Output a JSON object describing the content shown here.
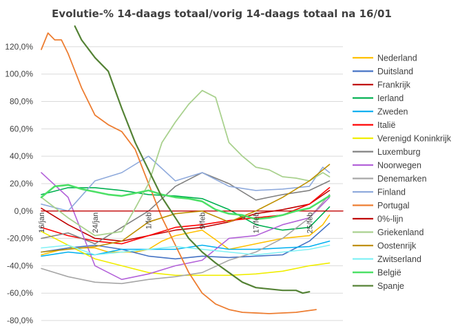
{
  "chart_data": {
    "type": "line",
    "title": "Evolutie-% 14-daags totaal/vorig 14-daags totaal na 16/01",
    "xlabel": "",
    "ylabel": "",
    "x_range": [
      "16/jan",
      "1/mrt"
    ],
    "x_ticks": [
      {
        "label": "16/jan",
        "day": 0
      },
      {
        "label": "24/jan",
        "day": 8
      },
      {
        "label": "1/feb",
        "day": 16
      },
      {
        "label": "9/feb",
        "day": 24
      },
      {
        "label": "17/feb",
        "day": 32
      },
      {
        "label": "25/feb",
        "day": 40
      }
    ],
    "ylim": [
      -80,
      130
    ],
    "y_ticks": [
      -80,
      -60,
      -40,
      -20,
      0,
      20,
      40,
      60,
      80,
      100,
      120
    ],
    "y_tick_labels": [
      "-80,0%",
      "-60,0%",
      "-40,0%",
      "-20,0%",
      "0,0%",
      "20,0%",
      "40,0%",
      "60,0%",
      "80,0%",
      "100,0%",
      "120,0%"
    ],
    "grid": "horizontal",
    "legend_position": "right",
    "series": [
      {
        "name": "Nederland",
        "color": "#ffc000",
        "width": 1.6,
        "values": [
          [
            0,
            -32
          ],
          [
            4,
            -27
          ],
          [
            8,
            -27
          ],
          [
            10,
            -30
          ],
          [
            14,
            -30
          ],
          [
            16,
            -28
          ],
          [
            18,
            -22
          ],
          [
            20,
            -18
          ],
          [
            24,
            -14
          ],
          [
            28,
            -28
          ],
          [
            32,
            -24
          ],
          [
            36,
            -20
          ],
          [
            40,
            -18
          ],
          [
            42,
            -10
          ],
          [
            43,
            -3
          ]
        ]
      },
      {
        "name": "Duitsland",
        "color": "#4472c4",
        "width": 1.6,
        "values": [
          [
            0,
            -30
          ],
          [
            4,
            -27
          ],
          [
            8,
            -25
          ],
          [
            12,
            -28
          ],
          [
            16,
            -33
          ],
          [
            20,
            -35
          ],
          [
            24,
            -33
          ],
          [
            28,
            -34
          ],
          [
            32,
            -33
          ],
          [
            36,
            -32
          ],
          [
            40,
            -22
          ],
          [
            43,
            -9
          ]
        ]
      },
      {
        "name": "Frankrijk",
        "color": "#c00000",
        "width": 1.6,
        "values": [
          [
            0,
            2
          ],
          [
            4,
            -10
          ],
          [
            8,
            -20
          ],
          [
            12,
            -22
          ],
          [
            16,
            -18
          ],
          [
            20,
            -14
          ],
          [
            24,
            -12
          ],
          [
            28,
            -8
          ],
          [
            32,
            -2
          ],
          [
            36,
            1
          ],
          [
            40,
            5
          ],
          [
            43,
            15
          ]
        ]
      },
      {
        "name": "Ierland",
        "color": "#00b050",
        "width": 1.6,
        "values": [
          [
            0,
            12
          ],
          [
            4,
            17
          ],
          [
            8,
            17
          ],
          [
            12,
            15
          ],
          [
            16,
            12
          ],
          [
            20,
            11
          ],
          [
            24,
            9
          ],
          [
            28,
            1
          ],
          [
            32,
            -10
          ],
          [
            36,
            -14
          ],
          [
            40,
            -12
          ],
          [
            43,
            3
          ]
        ]
      },
      {
        "name": "Zweden",
        "color": "#00b0f0",
        "width": 1.6,
        "values": [
          [
            0,
            -33
          ],
          [
            4,
            -30
          ],
          [
            8,
            -32
          ],
          [
            12,
            -28
          ],
          [
            16,
            -28
          ],
          [
            20,
            -28
          ],
          [
            24,
            -25
          ],
          [
            28,
            -28
          ],
          [
            32,
            -28
          ],
          [
            36,
            -27
          ],
          [
            40,
            -26
          ],
          [
            43,
            -22
          ]
        ]
      },
      {
        "name": "Italië",
        "color": "#ff0000",
        "width": 1.6,
        "values": [
          [
            0,
            -12
          ],
          [
            4,
            -18
          ],
          [
            8,
            -22
          ],
          [
            12,
            -24
          ],
          [
            16,
            -18
          ],
          [
            20,
            -12
          ],
          [
            24,
            -10
          ],
          [
            28,
            -7
          ],
          [
            32,
            -5
          ],
          [
            36,
            -3
          ],
          [
            40,
            5
          ],
          [
            43,
            17
          ]
        ]
      },
      {
        "name": "Verenigd Koninkrijk",
        "color": "#f0ed00",
        "width": 1.6,
        "values": [
          [
            0,
            -15
          ],
          [
            4,
            -25
          ],
          [
            8,
            -35
          ],
          [
            12,
            -40
          ],
          [
            16,
            -45
          ],
          [
            20,
            -47
          ],
          [
            24,
            -47
          ],
          [
            28,
            -47
          ],
          [
            32,
            -46
          ],
          [
            36,
            -44
          ],
          [
            40,
            -40
          ],
          [
            43,
            -38
          ]
        ]
      },
      {
        "name": "Luxemburg",
        "color": "#808080",
        "width": 1.6,
        "values": [
          [
            0,
            -20
          ],
          [
            4,
            -16
          ],
          [
            8,
            -24
          ],
          [
            12,
            -12
          ],
          [
            16,
            0
          ],
          [
            20,
            18
          ],
          [
            24,
            28
          ],
          [
            28,
            20
          ],
          [
            32,
            8
          ],
          [
            36,
            12
          ],
          [
            40,
            15
          ],
          [
            43,
            22
          ]
        ]
      },
      {
        "name": "Noorwegen",
        "color": "#b362d9",
        "width": 1.6,
        "values": [
          [
            0,
            28
          ],
          [
            4,
            10
          ],
          [
            8,
            -40
          ],
          [
            12,
            -50
          ],
          [
            16,
            -46
          ],
          [
            20,
            -40
          ],
          [
            24,
            -36
          ],
          [
            28,
            -20
          ],
          [
            32,
            -18
          ],
          [
            36,
            -10
          ],
          [
            40,
            -5
          ],
          [
            43,
            10
          ]
        ]
      },
      {
        "name": "Denemarken",
        "color": "#a6a6a6",
        "width": 1.6,
        "values": [
          [
            0,
            -42
          ],
          [
            4,
            -48
          ],
          [
            8,
            -52
          ],
          [
            12,
            -53
          ],
          [
            16,
            -50
          ],
          [
            20,
            -48
          ],
          [
            24,
            -45
          ],
          [
            28,
            -36
          ],
          [
            32,
            -30
          ],
          [
            36,
            -20
          ],
          [
            40,
            -5
          ],
          [
            43,
            12
          ]
        ]
      },
      {
        "name": "Finland",
        "color": "#8faadc",
        "width": 1.6,
        "values": [
          [
            0,
            5
          ],
          [
            4,
            0
          ],
          [
            8,
            22
          ],
          [
            12,
            28
          ],
          [
            16,
            40
          ],
          [
            20,
            22
          ],
          [
            24,
            28
          ],
          [
            28,
            18
          ],
          [
            32,
            15
          ],
          [
            36,
            16
          ],
          [
            40,
            18
          ],
          [
            42,
            32
          ],
          [
            43,
            28
          ]
        ]
      },
      {
        "name": "Portugal",
        "color": "#ed7d31",
        "width": 1.8,
        "values": [
          [
            0,
            118
          ],
          [
            1,
            130
          ],
          [
            2,
            125
          ],
          [
            3,
            125
          ],
          [
            4,
            115
          ],
          [
            6,
            90
          ],
          [
            8,
            70
          ],
          [
            10,
            63
          ],
          [
            12,
            58
          ],
          [
            14,
            45
          ],
          [
            16,
            20
          ],
          [
            18,
            -5
          ],
          [
            20,
            -25
          ],
          [
            22,
            -45
          ],
          [
            24,
            -60
          ],
          [
            26,
            -68
          ],
          [
            28,
            -72
          ],
          [
            30,
            -74
          ],
          [
            34,
            -75
          ],
          [
            38,
            -74
          ],
          [
            41,
            -72
          ]
        ]
      },
      {
        "name": "0%-lijn",
        "color": "#c00000",
        "width": 1.4,
        "values": [
          [
            0,
            0
          ],
          [
            45,
            0
          ]
        ]
      },
      {
        "name": "Griekenland",
        "color": "#a9d18e",
        "width": 1.8,
        "values": [
          [
            0,
            10
          ],
          [
            4,
            -5
          ],
          [
            8,
            -18
          ],
          [
            12,
            -15
          ],
          [
            14,
            2
          ],
          [
            16,
            20
          ],
          [
            18,
            50
          ],
          [
            20,
            65
          ],
          [
            22,
            78
          ],
          [
            24,
            88
          ],
          [
            26,
            83
          ],
          [
            28,
            50
          ],
          [
            30,
            40
          ],
          [
            32,
            32
          ],
          [
            34,
            30
          ],
          [
            36,
            25
          ],
          [
            38,
            24
          ],
          [
            40,
            22
          ],
          [
            42,
            28
          ],
          [
            43,
            25
          ]
        ]
      },
      {
        "name": "Oostenrijk",
        "color": "#bf9000",
        "width": 1.6,
        "values": [
          [
            0,
            -30
          ],
          [
            4,
            -28
          ],
          [
            8,
            -26
          ],
          [
            12,
            -22
          ],
          [
            16,
            -8
          ],
          [
            20,
            -2
          ],
          [
            24,
            0
          ],
          [
            28,
            -8
          ],
          [
            32,
            0
          ],
          [
            36,
            10
          ],
          [
            40,
            22
          ],
          [
            43,
            34
          ]
        ]
      },
      {
        "name": "Zwitserland",
        "color": "#7ff1f5",
        "width": 1.6,
        "values": [
          [
            0,
            -27
          ],
          [
            4,
            -25
          ],
          [
            8,
            -32
          ],
          [
            12,
            -30
          ],
          [
            16,
            -28
          ],
          [
            20,
            -26
          ],
          [
            24,
            -28
          ],
          [
            28,
            -30
          ],
          [
            32,
            -32
          ],
          [
            36,
            -30
          ],
          [
            40,
            -28
          ],
          [
            43,
            -25
          ]
        ]
      },
      {
        "name": "België",
        "color": "#4ce066",
        "width": 2.6,
        "values": [
          [
            0,
            10
          ],
          [
            2,
            18
          ],
          [
            4,
            19
          ],
          [
            6,
            16
          ],
          [
            8,
            14
          ],
          [
            10,
            12
          ],
          [
            12,
            11
          ],
          [
            14,
            13
          ],
          [
            16,
            15
          ],
          [
            18,
            12
          ],
          [
            20,
            10
          ],
          [
            22,
            9
          ],
          [
            24,
            7
          ],
          [
            26,
            1
          ],
          [
            28,
            -2
          ],
          [
            30,
            -3
          ],
          [
            32,
            -6
          ],
          [
            34,
            -5
          ],
          [
            36,
            -3
          ],
          [
            38,
            0
          ],
          [
            40,
            2
          ],
          [
            42,
            8
          ],
          [
            43,
            11
          ]
        ]
      },
      {
        "name": "Spanje",
        "color": "#548235",
        "width": 2.2,
        "values": [
          [
            5,
            135
          ],
          [
            6,
            125
          ],
          [
            8,
            112
          ],
          [
            10,
            102
          ],
          [
            12,
            75
          ],
          [
            14,
            50
          ],
          [
            16,
            30
          ],
          [
            18,
            10
          ],
          [
            20,
            -5
          ],
          [
            22,
            -20
          ],
          [
            24,
            -30
          ],
          [
            26,
            -38
          ],
          [
            28,
            -45
          ],
          [
            30,
            -52
          ],
          [
            32,
            -56
          ],
          [
            34,
            -57
          ],
          [
            36,
            -58
          ],
          [
            38,
            -58
          ],
          [
            39,
            -60
          ],
          [
            40,
            -59
          ]
        ]
      }
    ]
  }
}
